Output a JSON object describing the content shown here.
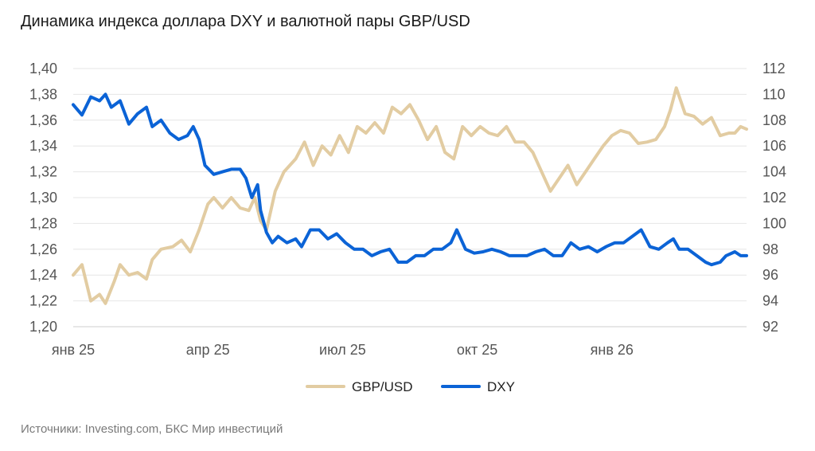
{
  "title": "Динамика индекса доллара DXY и валютной пары GBP/USD",
  "source": "Источники: Investing.com, БКС Мир инвестиций",
  "chart_data": {
    "type": "line",
    "title": "Динамика индекса доллара DXY и валютной пары GBP/USD",
    "x_tick_labels": [
      "янв 25",
      "апр 25",
      "июл 25",
      "окт 25",
      "янв 26"
    ],
    "left_axis": {
      "ylim": [
        1.2,
        1.4
      ],
      "tick_values": [
        1.2,
        1.22,
        1.24,
        1.26,
        1.28,
        1.3,
        1.32,
        1.34,
        1.36,
        1.38,
        1.4
      ],
      "tick_labels": [
        "1,20",
        "1,22",
        "1,24",
        "1,26",
        "1,28",
        "1,30",
        "1,32",
        "1,34",
        "1,36",
        "1,38",
        "1,40"
      ]
    },
    "right_axis": {
      "ylim": [
        92,
        112
      ],
      "tick_values": [
        92,
        94,
        96,
        98,
        100,
        102,
        104,
        106,
        108,
        110,
        112
      ],
      "tick_labels": [
        "92",
        "94",
        "96",
        "98",
        "100",
        "102",
        "104",
        "106",
        "108",
        "110",
        "112"
      ]
    },
    "grid": "horizontal",
    "legend_position": "bottom-center",
    "series": [
      {
        "name": "GBP/USD",
        "axis": "left",
        "color": "#e2cca2",
        "points": [
          [
            0.0,
            1.24
          ],
          [
            1.5,
            1.248
          ],
          [
            3.0,
            1.22
          ],
          [
            4.5,
            1.225
          ],
          [
            5.5,
            1.218
          ],
          [
            7.0,
            1.235
          ],
          [
            8.0,
            1.248
          ],
          [
            9.5,
            1.24
          ],
          [
            11.0,
            1.242
          ],
          [
            12.5,
            1.237
          ],
          [
            13.5,
            1.252
          ],
          [
            15.0,
            1.26
          ],
          [
            17.0,
            1.262
          ],
          [
            18.5,
            1.267
          ],
          [
            20.0,
            1.258
          ],
          [
            21.5,
            1.275
          ],
          [
            23.0,
            1.295
          ],
          [
            24.0,
            1.3
          ],
          [
            25.5,
            1.292
          ],
          [
            27.0,
            1.3
          ],
          [
            28.5,
            1.292
          ],
          [
            30.0,
            1.29
          ],
          [
            31.0,
            1.3
          ],
          [
            32.0,
            1.282
          ],
          [
            33.0,
            1.275
          ],
          [
            34.5,
            1.305
          ],
          [
            36.0,
            1.32
          ],
          [
            38.0,
            1.33
          ],
          [
            39.5,
            1.343
          ],
          [
            41.0,
            1.325
          ],
          [
            42.5,
            1.34
          ],
          [
            44.0,
            1.333
          ],
          [
            45.5,
            1.348
          ],
          [
            47.0,
            1.335
          ],
          [
            48.5,
            1.355
          ],
          [
            50.0,
            1.35
          ],
          [
            51.5,
            1.358
          ],
          [
            53.0,
            1.35
          ],
          [
            54.5,
            1.37
          ],
          [
            56.0,
            1.365
          ],
          [
            57.5,
            1.372
          ],
          [
            59.0,
            1.36
          ],
          [
            60.5,
            1.345
          ],
          [
            62.0,
            1.355
          ],
          [
            63.5,
            1.335
          ],
          [
            65.0,
            1.33
          ],
          [
            66.5,
            1.355
          ],
          [
            68.0,
            1.348
          ],
          [
            69.5,
            1.355
          ],
          [
            71.0,
            1.35
          ],
          [
            72.5,
            1.348
          ],
          [
            74.0,
            1.355
          ],
          [
            75.5,
            1.343
          ],
          [
            77.0,
            1.343
          ],
          [
            78.5,
            1.335
          ],
          [
            80.0,
            1.32
          ],
          [
            81.5,
            1.305
          ],
          [
            83.0,
            1.315
          ],
          [
            84.5,
            1.325
          ],
          [
            86.0,
            1.31
          ],
          [
            87.5,
            1.32
          ],
          [
            89.0,
            1.33
          ],
          [
            90.5,
            1.34
          ],
          [
            92.0,
            1.348
          ],
          [
            93.5,
            1.352
          ],
          [
            95.0,
            1.35
          ],
          [
            96.5,
            1.342
          ],
          [
            98.0,
            1.343
          ],
          [
            99.5,
            1.345
          ],
          [
            101.0,
            1.355
          ],
          [
            102.0,
            1.368
          ],
          [
            103.0,
            1.385
          ],
          [
            104.5,
            1.365
          ],
          [
            106.0,
            1.363
          ],
          [
            107.5,
            1.357
          ],
          [
            109.0,
            1.362
          ],
          [
            110.5,
            1.348
          ],
          [
            112.0,
            1.35
          ],
          [
            113.0,
            1.35
          ],
          [
            114.0,
            1.355
          ],
          [
            115.0,
            1.353
          ]
        ]
      },
      {
        "name": "DXY",
        "axis": "right",
        "color": "#0b63d6",
        "points": [
          [
            0.0,
            109.2
          ],
          [
            1.5,
            108.4
          ],
          [
            3.0,
            109.8
          ],
          [
            4.5,
            109.5
          ],
          [
            5.5,
            110.0
          ],
          [
            6.5,
            109.0
          ],
          [
            8.0,
            109.5
          ],
          [
            9.5,
            107.7
          ],
          [
            11.0,
            108.5
          ],
          [
            12.5,
            109.0
          ],
          [
            13.5,
            107.5
          ],
          [
            15.0,
            108.0
          ],
          [
            16.5,
            107.0
          ],
          [
            18.0,
            106.5
          ],
          [
            19.5,
            106.8
          ],
          [
            20.5,
            107.5
          ],
          [
            21.5,
            106.5
          ],
          [
            22.5,
            104.5
          ],
          [
            24.0,
            103.8
          ],
          [
            25.5,
            104.0
          ],
          [
            27.0,
            104.2
          ],
          [
            28.5,
            104.2
          ],
          [
            29.5,
            103.5
          ],
          [
            30.5,
            102.0
          ],
          [
            31.5,
            103.0
          ],
          [
            32.0,
            101.0
          ],
          [
            33.0,
            99.3
          ],
          [
            34.0,
            98.5
          ],
          [
            35.0,
            99.0
          ],
          [
            36.5,
            98.5
          ],
          [
            38.0,
            98.8
          ],
          [
            39.0,
            98.2
          ],
          [
            40.5,
            99.5
          ],
          [
            42.0,
            99.5
          ],
          [
            43.5,
            98.8
          ],
          [
            45.0,
            99.2
          ],
          [
            46.5,
            98.5
          ],
          [
            48.0,
            98.0
          ],
          [
            49.5,
            98.0
          ],
          [
            51.0,
            97.5
          ],
          [
            52.5,
            97.8
          ],
          [
            54.0,
            98.0
          ],
          [
            55.5,
            97.0
          ],
          [
            57.0,
            97.0
          ],
          [
            58.5,
            97.5
          ],
          [
            60.0,
            97.5
          ],
          [
            61.5,
            98.0
          ],
          [
            63.0,
            98.0
          ],
          [
            64.5,
            98.5
          ],
          [
            65.5,
            99.5
          ],
          [
            67.0,
            98.0
          ],
          [
            68.5,
            97.7
          ],
          [
            70.0,
            97.8
          ],
          [
            71.5,
            98.0
          ],
          [
            73.0,
            97.8
          ],
          [
            74.5,
            97.5
          ],
          [
            76.0,
            97.5
          ],
          [
            77.5,
            97.5
          ],
          [
            79.0,
            97.8
          ],
          [
            80.5,
            98.0
          ],
          [
            82.0,
            97.5
          ],
          [
            83.5,
            97.5
          ],
          [
            85.0,
            98.5
          ],
          [
            86.5,
            98.0
          ],
          [
            88.0,
            98.2
          ],
          [
            89.5,
            97.8
          ],
          [
            91.0,
            98.2
          ],
          [
            92.5,
            98.5
          ],
          [
            94.0,
            98.5
          ],
          [
            95.5,
            99.0
          ],
          [
            97.0,
            99.5
          ],
          [
            98.5,
            98.2
          ],
          [
            100.0,
            98.0
          ],
          [
            101.5,
            98.5
          ],
          [
            102.5,
            98.8
          ],
          [
            103.5,
            98.0
          ],
          [
            105.0,
            98.0
          ],
          [
            106.5,
            97.5
          ],
          [
            108.0,
            97.0
          ],
          [
            109.0,
            96.8
          ],
          [
            110.5,
            97.0
          ],
          [
            111.5,
            97.5
          ],
          [
            113.0,
            97.8
          ],
          [
            114.0,
            97.5
          ],
          [
            115.0,
            97.5
          ]
        ]
      }
    ]
  }
}
